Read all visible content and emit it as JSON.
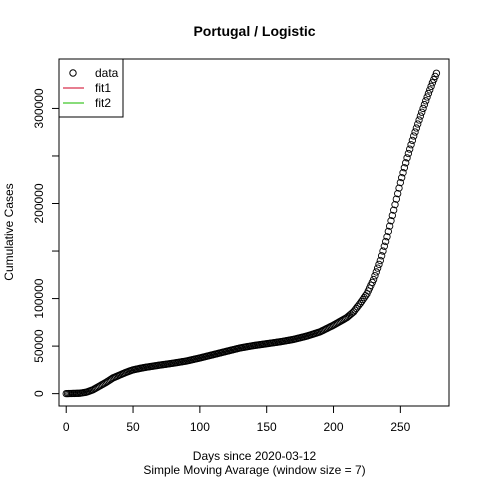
{
  "chart_data": {
    "type": "scatter",
    "title": "Portugal / Logistic",
    "xlabel": "Days since 2020-03-12",
    "xlabel2": "Simple Moving Avarage (window size = 7)",
    "ylabel": "Cumulative Cases",
    "xlim": [
      -5.4,
      286.4
    ],
    "ylim": [
      -13000,
      352000
    ],
    "xticks": [
      0,
      50,
      100,
      150,
      200,
      250
    ],
    "yticks": [
      0,
      50000,
      100000,
      200000,
      300000
    ],
    "yticks_minor": [
      150000,
      250000
    ],
    "legend": {
      "placement": "top-left",
      "entries": [
        {
          "label": "data",
          "kind": "point",
          "color": "#000000"
        },
        {
          "label": "fit1",
          "kind": "line",
          "color": "#DF536B"
        },
        {
          "label": "fit2",
          "kind": "line",
          "color": "#61D04F"
        }
      ]
    },
    "anchors": [
      [
        0,
        0
      ],
      [
        10,
        400
      ],
      [
        15,
        1500
      ],
      [
        20,
        4000
      ],
      [
        25,
        8000
      ],
      [
        30,
        12000
      ],
      [
        35,
        16500
      ],
      [
        40,
        19500
      ],
      [
        45,
        22500
      ],
      [
        50,
        25000
      ],
      [
        55,
        26500
      ],
      [
        60,
        27800
      ],
      [
        70,
        30000
      ],
      [
        80,
        32000
      ],
      [
        90,
        34300
      ],
      [
        100,
        37500
      ],
      [
        110,
        41000
      ],
      [
        120,
        44500
      ],
      [
        130,
        48000
      ],
      [
        140,
        50500
      ],
      [
        150,
        52500
      ],
      [
        160,
        54500
      ],
      [
        170,
        57000
      ],
      [
        180,
        60500
      ],
      [
        190,
        65000
      ],
      [
        200,
        72000
      ],
      [
        205,
        76000
      ],
      [
        210,
        80000
      ],
      [
        215,
        86000
      ],
      [
        220,
        95000
      ],
      [
        225,
        105000
      ],
      [
        230,
        120000
      ],
      [
        235,
        140000
      ],
      [
        240,
        165000
      ],
      [
        245,
        193000
      ],
      [
        250,
        222000
      ],
      [
        255,
        248000
      ],
      [
        260,
        271000
      ],
      [
        265,
        292000
      ],
      [
        270,
        312000
      ],
      [
        274,
        327000
      ],
      [
        277,
        337000
      ]
    ]
  }
}
